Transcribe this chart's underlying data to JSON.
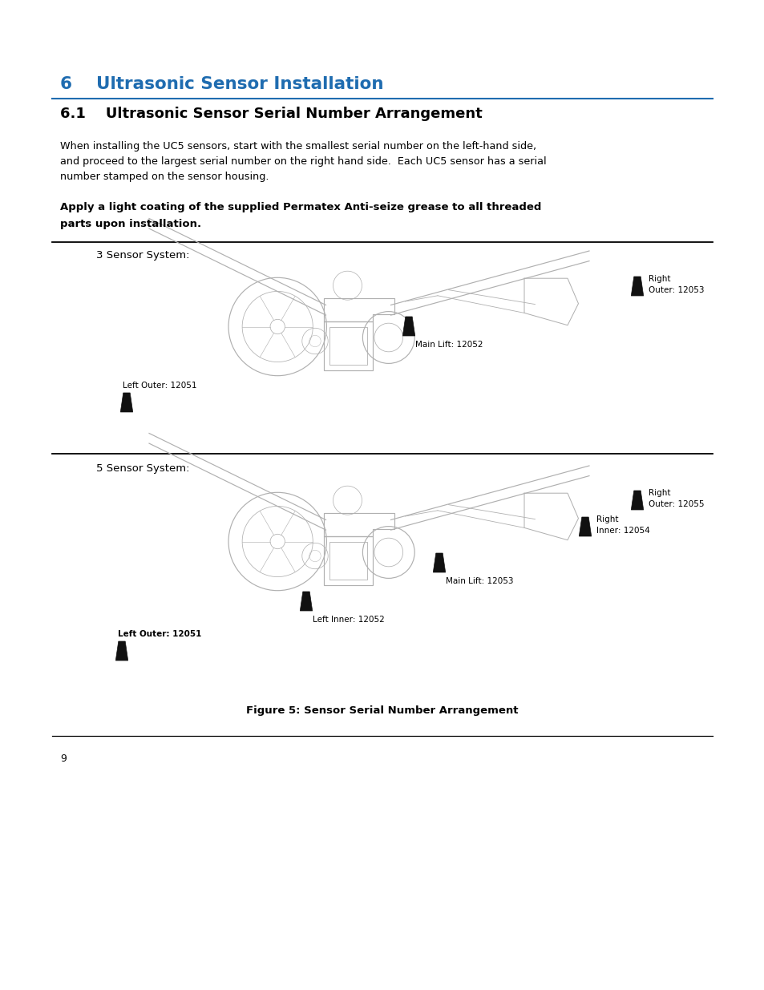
{
  "bg_color": "#ffffff",
  "page_width": 9.54,
  "page_height": 12.35,
  "heading_color": "#1f6cb0",
  "heading_text": "6    Ultrasonic Sensor Installation",
  "subheading_text": "6.1    Ultrasonic Sensor Serial Number Arrangement",
  "body_text1_lines": [
    "When installing the UC5 sensors, start with the smallest serial number on the left-hand side,",
    "and proceed to the largest serial number on the right hand side.  Each UC5 sensor has a serial",
    "number stamped on the sensor housing."
  ],
  "bold_text_lines": [
    "Apply a light coating of the supplied Permatex Anti-seize grease to all threaded",
    "parts upon installation."
  ],
  "section3_label": "3 Sensor System:",
  "section5_label": "5 Sensor System:",
  "figure_caption": "Figure 5: Sensor Serial Number Arrangement",
  "page_number": "9",
  "outline_color": "#b0b0b0",
  "sensor_color": "#111111"
}
